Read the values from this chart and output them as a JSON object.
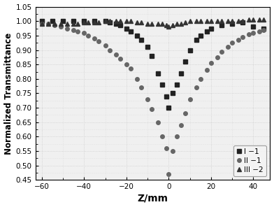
{
  "title": "",
  "xlabel": "Z/mm",
  "ylabel": "Normalized Transmittance",
  "xlim": [
    -63,
    48
  ],
  "ylim": [
    0.45,
    1.05
  ],
  "xticks": [
    -60,
    -40,
    -20,
    0,
    20,
    40
  ],
  "yticks": [
    0.45,
    0.5,
    0.55,
    0.6,
    0.65,
    0.7,
    0.75,
    0.8,
    0.85,
    0.9,
    0.95,
    1.0,
    1.05
  ],
  "series_I1": {
    "label": "I −1",
    "marker": "s",
    "color": "#222222",
    "x": [
      -60,
      -55,
      -50,
      -45,
      -40,
      -35,
      -30,
      -28,
      -25,
      -23,
      -20,
      -18,
      -15,
      -13,
      -10,
      -8,
      -5,
      -3,
      -1,
      0,
      2,
      4,
      6,
      8,
      10,
      13,
      15,
      18,
      20,
      25,
      30,
      35,
      40,
      45
    ],
    "y": [
      1.0,
      1.0,
      1.0,
      1.0,
      1.0,
      1.0,
      1.0,
      0.995,
      0.99,
      0.985,
      0.975,
      0.965,
      0.95,
      0.935,
      0.91,
      0.88,
      0.82,
      0.78,
      0.74,
      0.7,
      0.75,
      0.78,
      0.82,
      0.86,
      0.9,
      0.935,
      0.95,
      0.965,
      0.975,
      0.985,
      0.99,
      0.995,
      0.98,
      0.975
    ]
  },
  "series_II1": {
    "label": "II −1",
    "marker": "o",
    "color": "#666666",
    "x": [
      -60,
      -57,
      -54,
      -51,
      -48,
      -45,
      -43,
      -40,
      -38,
      -35,
      -33,
      -30,
      -28,
      -25,
      -23,
      -20,
      -18,
      -15,
      -13,
      -10,
      -8,
      -5,
      -3,
      -1,
      0,
      2,
      4,
      6,
      8,
      10,
      13,
      15,
      18,
      20,
      23,
      25,
      28,
      30,
      33,
      35,
      38,
      40,
      43,
      45
    ],
    "y": [
      0.99,
      0.99,
      0.985,
      0.98,
      0.975,
      0.97,
      0.965,
      0.96,
      0.95,
      0.94,
      0.93,
      0.915,
      0.9,
      0.885,
      0.87,
      0.85,
      0.835,
      0.8,
      0.77,
      0.73,
      0.695,
      0.65,
      0.6,
      0.56,
      0.47,
      0.55,
      0.6,
      0.64,
      0.68,
      0.73,
      0.77,
      0.8,
      0.83,
      0.855,
      0.875,
      0.895,
      0.91,
      0.925,
      0.935,
      0.945,
      0.955,
      0.96,
      0.965,
      0.97
    ]
  },
  "series_III2": {
    "label": "III −2",
    "marker": "^",
    "color": "#333333",
    "x": [
      -60,
      -57,
      -54,
      -51,
      -48,
      -45,
      -43,
      -40,
      -38,
      -35,
      -33,
      -30,
      -28,
      -25,
      -23,
      -20,
      -18,
      -15,
      -13,
      -10,
      -8,
      -5,
      -3,
      -1,
      0,
      2,
      4,
      6,
      8,
      10,
      13,
      15,
      18,
      20,
      23,
      25,
      28,
      30,
      33,
      35,
      38,
      40,
      43,
      45
    ],
    "y": [
      0.99,
      0.99,
      0.99,
      0.99,
      0.99,
      0.99,
      0.99,
      0.995,
      0.995,
      0.995,
      0.995,
      1.0,
      1.0,
      1.0,
      1.0,
      1.0,
      1.0,
      0.995,
      0.995,
      0.99,
      0.99,
      0.99,
      0.99,
      0.985,
      0.98,
      0.985,
      0.99,
      0.99,
      0.995,
      1.0,
      1.0,
      1.0,
      1.0,
      1.0,
      1.0,
      1.0,
      1.0,
      1.0,
      1.0,
      1.0,
      1.005,
      1.005,
      1.005,
      1.005
    ]
  },
  "background_color": "#f0f0f0",
  "grid_color": "#cccccc",
  "legend_loc": "lower right"
}
